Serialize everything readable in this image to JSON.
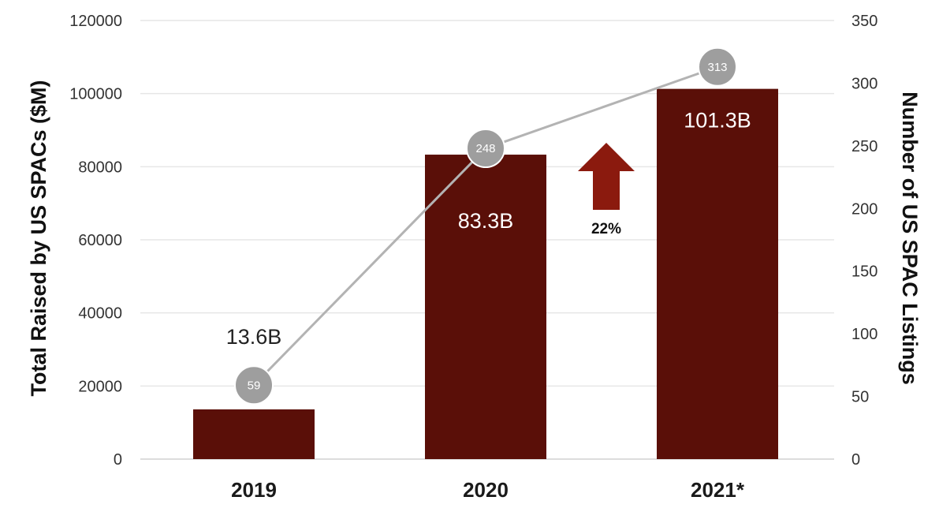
{
  "chart_data": {
    "type": "bar",
    "categories": [
      "2019",
      "2020",
      "2021*"
    ],
    "series": [
      {
        "name": "Total Raised by US SPACs ($M)",
        "type": "bar",
        "axis": "left",
        "values": [
          13600,
          83300,
          101300
        ],
        "labels": [
          "13.6B",
          "83.3B",
          "101.3B"
        ],
        "color": "#5a0f08"
      },
      {
        "name": "Number of US SPAC Listings",
        "type": "line",
        "axis": "right",
        "values": [
          59,
          248,
          313
        ],
        "labels": [
          "59",
          "248",
          "313"
        ],
        "line_color": "#b3b3b3",
        "marker_color": "#9e9e9e"
      }
    ],
    "y_left": {
      "label": "Total Raised by US SPACs ($M)",
      "ylim": [
        0,
        120000
      ],
      "ticks": [
        "0",
        "20000",
        "40000",
        "60000",
        "80000",
        "100000",
        "120000"
      ]
    },
    "y_right": {
      "label": "Number of US SPAC Listings",
      "ylim": [
        0,
        350
      ],
      "ticks": [
        "0",
        "50",
        "100",
        "150",
        "200",
        "250",
        "300",
        "350"
      ]
    },
    "grid": true,
    "annotation": {
      "text": "22%",
      "icon": "up-arrow-icon",
      "color": "#8b1a0e",
      "between": [
        "2020",
        "2021*"
      ]
    }
  }
}
